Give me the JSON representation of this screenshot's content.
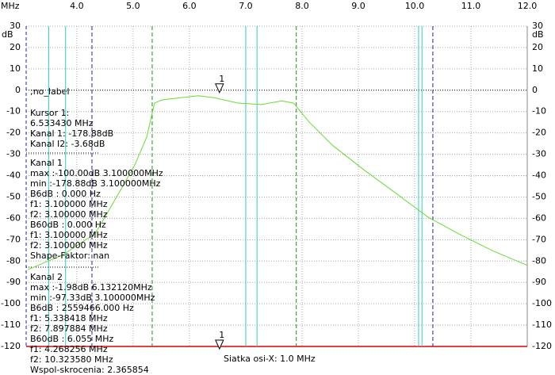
{
  "chart_data": {
    "type": "line",
    "xlabel": "MHz",
    "ylabel": "dB",
    "xlim": [
      3.1,
      12.0
    ],
    "ylim": [
      -120,
      30
    ],
    "xticks": [
      {
        "value": 4,
        "label": "4.0"
      },
      {
        "value": 5,
        "label": "5.0"
      },
      {
        "value": 6,
        "label": "6.0"
      },
      {
        "value": 7,
        "label": "7.0"
      },
      {
        "value": 8,
        "label": "8.0"
      },
      {
        "value": 9,
        "label": "9.0"
      },
      {
        "value": 10,
        "label": "10.0"
      },
      {
        "value": 11,
        "label": "11.0"
      },
      {
        "value": 12,
        "label": "12.0"
      }
    ],
    "yticks": [
      30,
      20,
      10,
      0,
      -10,
      -20,
      -30,
      -40,
      -50,
      -60,
      -70,
      -80,
      -90,
      -100,
      -110,
      -120
    ],
    "grid": true,
    "series": [
      {
        "name": "Kanal 2",
        "color": "#66dd33",
        "x": [
          3.13,
          3.76,
          4.33,
          4.75,
          5.03,
          5.24,
          5.38,
          5.52,
          6.16,
          6.44,
          6.86,
          7.28,
          7.64,
          7.85,
          8.13,
          8.55,
          9.11,
          9.68,
          10.24,
          10.8,
          11.37,
          12.0
        ],
        "values": [
          -84,
          -77,
          -67,
          -48,
          -35,
          -22,
          -6,
          -4.5,
          -2.6,
          -3.5,
          -6,
          -6.7,
          -5,
          -6,
          -15,
          -26,
          -37.5,
          -48.5,
          -59.5,
          -67.5,
          -75,
          -82
        ]
      }
    ],
    "cursor_lines": [
      {
        "x": 3.5,
        "color": "#33cccc",
        "style": "solid"
      },
      {
        "x": 3.8,
        "color": "#33cccc",
        "style": "solid"
      },
      {
        "x": 4.268256,
        "color": "#2222aa",
        "style": "dashed"
      },
      {
        "x": 5.338418,
        "color": "#228822",
        "style": "dashed"
      },
      {
        "x": 7.0,
        "color": "#33cccc",
        "style": "solid"
      },
      {
        "x": 7.2,
        "color": "#33cccc",
        "style": "solid"
      },
      {
        "x": 7.897884,
        "color": "#228822",
        "style": "dashed"
      },
      {
        "x": 10.07,
        "color": "#33cccc",
        "style": "solid"
      },
      {
        "x": 10.13,
        "color": "#33cccc",
        "style": "solid"
      },
      {
        "x": 10.32358,
        "color": "#2222aa",
        "style": "dashed"
      }
    ],
    "marker": {
      "label": "1",
      "x": 6.53343
    },
    "no_label": ";no_label",
    "grid_note": "Siatka osi-X: 1.0 MHz",
    "annotations": [
      [
        "Kursor 1:",
        "6.533430 MHz",
        "Kanal 1: -178.88dB",
        "Kanal I2: -3.68dB"
      ],
      [
        "Kanal 1",
        "max :-100.00dB 3.100000MHz",
        "min :-178.88dB 3.100000MHz",
        "B6dB : 0.000 Hz",
        "f1: 3.100000 MHz",
        "f2: 3.100000 MHz",
        "B60dB : 0.000 Hz",
        "f1: 3.100000 MHz",
        "f2: 3.100000 MHz",
        "Shape-Faktor: nan"
      ],
      [
        "Kanal 2",
        "max :-1.98dB 6.132120MHz",
        "min :-97.33dB 3.100000MHz",
        "B6dB : 2559466.000 Hz",
        "f1: 5.338418 MHz",
        "f2: 7.897884 MHz",
        "B60dB : 6.055 MHz",
        "f1: 4.268256 MHz",
        "f2: 10.323580 MHz",
        "Wspol-skrocenia: 2.365854"
      ]
    ]
  }
}
